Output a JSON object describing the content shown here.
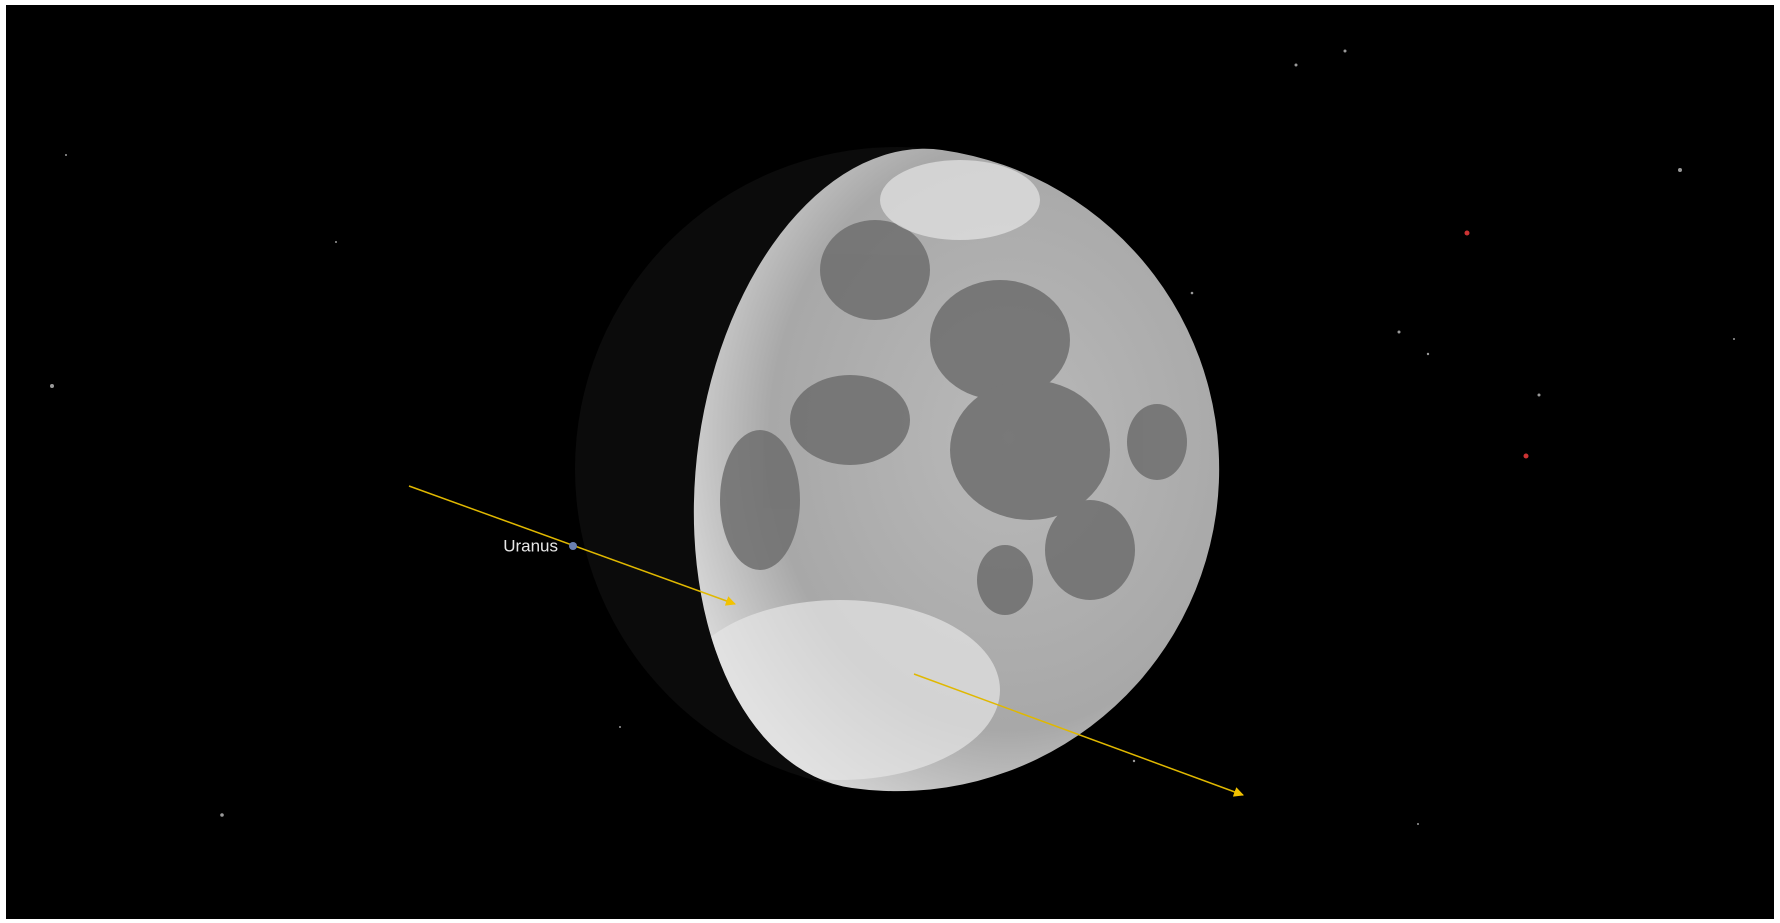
{
  "objects": [
    {
      "label": "Uranus"
    }
  ]
}
